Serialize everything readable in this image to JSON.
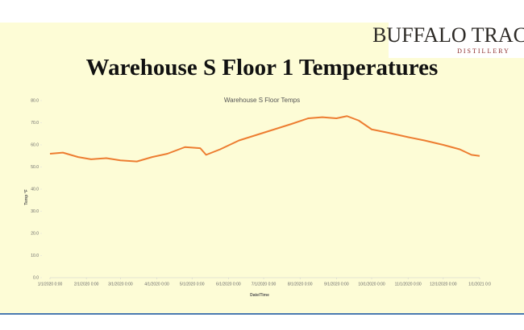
{
  "logo": {
    "name": "BUFFALO TRACE",
    "subtitle": "DISTILLERY"
  },
  "slide_title": "Warehouse S Floor 1 Temperatures",
  "chart_data": {
    "type": "line",
    "title": "Warehouse S Floor Temps",
    "x_label": "Date/Time",
    "y_label": "Temp °F",
    "x": [
      "2020-01-01",
      "2020-01-12",
      "2020-01-25",
      "2020-02-05",
      "2020-02-18",
      "2020-03-01",
      "2020-03-15",
      "2020-03-28",
      "2020-04-10",
      "2020-04-25",
      "2020-05-08",
      "2020-05-13",
      "2020-05-25",
      "2020-06-10",
      "2020-06-25",
      "2020-07-10",
      "2020-07-25",
      "2020-08-08",
      "2020-08-20",
      "2020-09-01",
      "2020-09-10",
      "2020-09-20",
      "2020-10-01",
      "2020-10-15",
      "2020-11-01",
      "2020-11-15",
      "2020-12-01",
      "2020-12-15",
      "2020-12-25",
      "2021-01-01"
    ],
    "series": [
      {
        "name": "Temp",
        "color": "#ed7d31",
        "values": [
          56,
          56.5,
          54.5,
          53.5,
          54,
          53,
          52.5,
          54.5,
          56,
          59,
          58.5,
          55.5,
          58,
          62,
          64.5,
          67,
          69.5,
          72,
          72.5,
          72,
          73,
          71,
          67,
          65.5,
          63.5,
          62,
          60,
          58,
          55.5,
          55
        ]
      }
    ],
    "xlim": [
      "2020-01-01",
      "2021-01-01"
    ],
    "xticks": [
      {
        "value": "2020-01-01",
        "label": "1/1/2020 0:00"
      },
      {
        "value": "2020-02-01",
        "label": "2/1/2020 0:00"
      },
      {
        "value": "2020-03-01",
        "label": "3/1/2020 0:00"
      },
      {
        "value": "2020-04-01",
        "label": "4/1/2020 0:00"
      },
      {
        "value": "2020-05-01",
        "label": "5/1/2020 0:00"
      },
      {
        "value": "2020-06-01",
        "label": "6/1/2020 0:00"
      },
      {
        "value": "2020-07-01",
        "label": "7/1/2020 0:00"
      },
      {
        "value": "2020-08-01",
        "label": "8/1/2020 0:00"
      },
      {
        "value": "2020-09-01",
        "label": "9/1/2020 0:00"
      },
      {
        "value": "2020-10-01",
        "label": "10/1/2020 0:00"
      },
      {
        "value": "2020-11-01",
        "label": "11/1/2020 0:00"
      },
      {
        "value": "2020-12-01",
        "label": "12/1/2020 0:00"
      },
      {
        "value": "2021-01-01",
        "label": "1/1/2021 0:0"
      }
    ],
    "ylim": [
      0,
      80
    ],
    "yticks": [
      {
        "value": 0,
        "label": "0.0"
      },
      {
        "value": 10,
        "label": "10.0"
      },
      {
        "value": 20,
        "label": "20.0"
      },
      {
        "value": 30,
        "label": "30.0"
      },
      {
        "value": 40,
        "label": "40.0"
      },
      {
        "value": 50,
        "label": "50.0"
      },
      {
        "value": 60,
        "label": "60.0"
      },
      {
        "value": 70,
        "label": "70.0"
      },
      {
        "value": 80,
        "label": "80.0"
      }
    ]
  }
}
